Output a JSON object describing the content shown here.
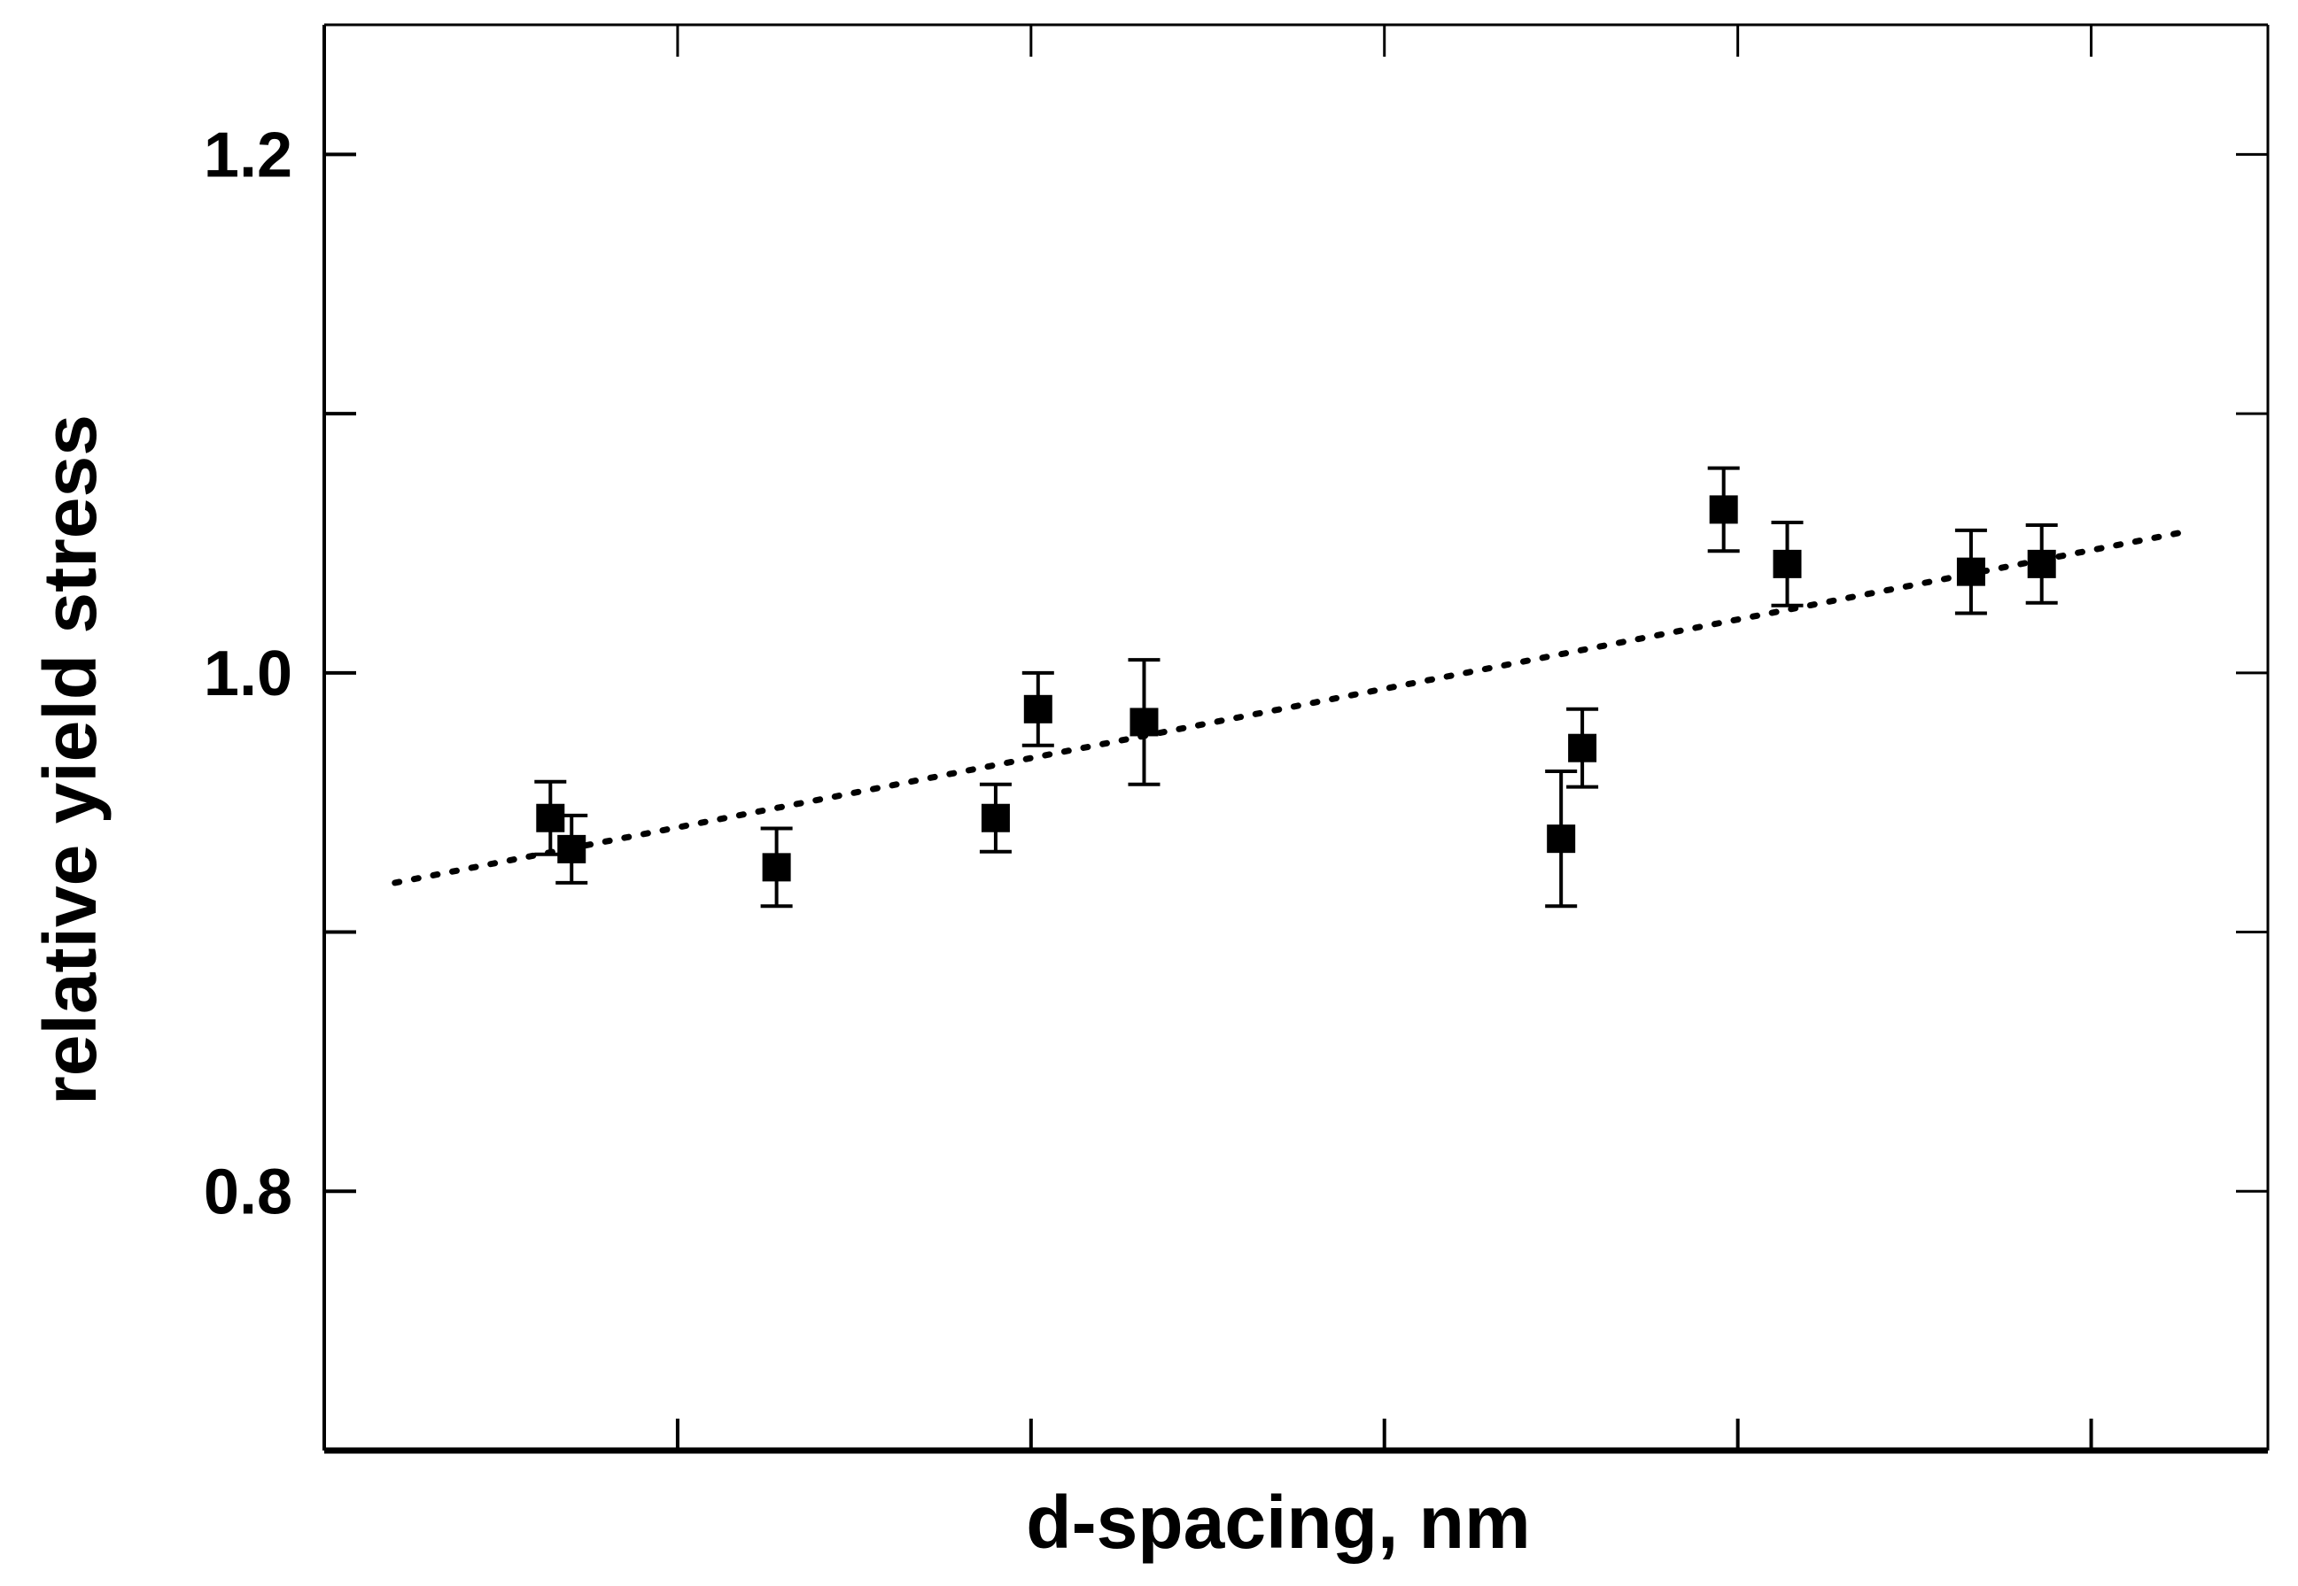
{
  "chart_data": {
    "type": "scatter",
    "title": "",
    "xlabel": "d-spacing, nm",
    "ylabel": "relative yield stress",
    "xlim": [
      0,
      5.5
    ],
    "ylim": [
      0.7,
      1.25
    ],
    "x_ticks": [
      1,
      2,
      3,
      4,
      5
    ],
    "x_tick_labels": [
      "",
      "",
      "",
      "",
      ""
    ],
    "y_ticks": [
      0.8,
      0.9,
      1.0,
      1.1,
      1.2
    ],
    "y_tick_labels": [
      "0.8",
      "",
      "1.0",
      "",
      "1.2"
    ],
    "grid": false,
    "legend": "none",
    "series": [
      {
        "marker": "filled-square",
        "color": "#000000",
        "points": [
          {
            "x": 0.64,
            "y": 0.944,
            "err": 0.014
          },
          {
            "x": 0.7,
            "y": 0.932,
            "err": 0.013
          },
          {
            "x": 1.28,
            "y": 0.925,
            "err": 0.015
          },
          {
            "x": 1.9,
            "y": 0.944,
            "err": 0.013
          },
          {
            "x": 2.02,
            "y": 0.986,
            "err": 0.014
          },
          {
            "x": 2.32,
            "y": 0.981,
            "err": 0.024
          },
          {
            "x": 3.5,
            "y": 0.936,
            "err": 0.026
          },
          {
            "x": 3.56,
            "y": 0.971,
            "err": 0.015
          },
          {
            "x": 3.96,
            "y": 1.063,
            "err": 0.016
          },
          {
            "x": 4.14,
            "y": 1.042,
            "err": 0.016
          },
          {
            "x": 4.66,
            "y": 1.039,
            "err": 0.016
          },
          {
            "x": 4.86,
            "y": 1.042,
            "err": 0.015
          }
        ]
      },
      {
        "style": "dotted-line",
        "color": "#000000",
        "points": [
          {
            "x": 0.2,
            "y": 0.919
          },
          {
            "x": 5.25,
            "y": 1.054
          }
        ]
      }
    ]
  }
}
